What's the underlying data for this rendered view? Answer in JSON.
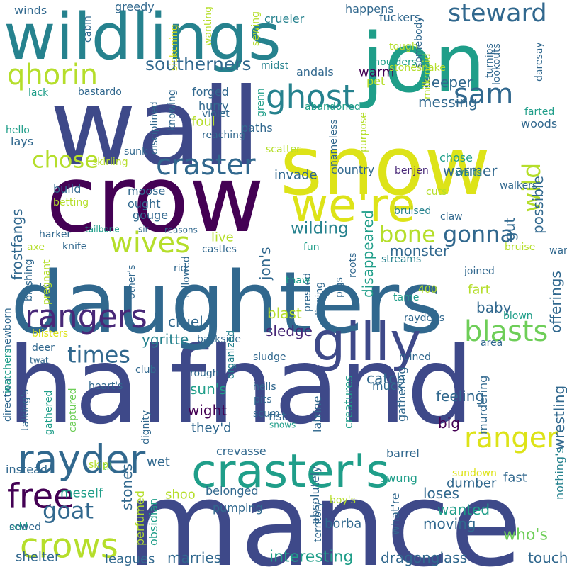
{
  "palette": [
    "#440154",
    "#482878",
    "#3e4989",
    "#31688e",
    "#26828e",
    "#1f9e89",
    "#35b779",
    "#6ece58",
    "#b5de2b",
    "#dde318"
  ],
  "background": "#ffffff",
  "words": [
    "mance",
    "halfhand",
    "daughters",
    "crow",
    "wall",
    "snow",
    "jon",
    "wildlings",
    "we're",
    "craster's",
    "gilly",
    "rayder",
    "crows",
    "free",
    "ranger",
    "ghost",
    "sam",
    "steward",
    "qhorin",
    "craster",
    "rangers",
    "blasts",
    "gonna",
    "bone",
    "wives",
    "chose",
    "goat",
    "times",
    "wild",
    "southerners",
    "wilding",
    "interesting",
    "touch",
    "who's",
    "wanted",
    "dragonglass",
    "marries",
    "loses",
    "moving",
    "frostfangs",
    "wrestling",
    "offerings",
    "possible",
    "disappeared",
    "sledge",
    "blast",
    "cruel",
    "ygritte",
    "wight",
    "sun's",
    "they'd",
    "feeling",
    "catch",
    "big",
    "fart",
    "baby",
    "monster",
    "invade",
    "country",
    "warmer",
    "gut",
    "deeper",
    "messing",
    "pet",
    "warm",
    "andals",
    "happens",
    "fuckers",
    "tough",
    "crueler",
    "winds",
    "greedy",
    "forged",
    "hurry",
    "violet",
    "foul",
    "lays",
    "chose",
    "shelter",
    "leagues",
    "borba",
    "instead",
    "meself",
    "shoo",
    "wet",
    "stones",
    "belonged",
    "what're",
    "fast",
    "dumber",
    "barrel",
    "swung",
    "sundown",
    "nothing's",
    "crevasse",
    "pumping",
    "absolutely",
    "territory",
    "obsidian",
    "perfumed",
    "edd",
    "sewed",
    "til",
    "skip",
    "boy's",
    "direction",
    "talking's",
    "gathered",
    "captured",
    "heart's",
    "dignity",
    "club",
    "rough",
    "hells",
    "pits",
    "scum",
    "fist",
    "snows",
    "latrine",
    "creatures",
    "gathering",
    "murdering",
    "muck",
    "ruined",
    "sludge",
    "deer",
    "twat",
    "blisters",
    "newborn",
    "lake",
    "pregnant",
    "other's",
    "followed",
    "rid",
    "backside",
    "organized",
    "digging",
    "pigs",
    "roots",
    "pressed",
    "thaw",
    "streams",
    "400",
    "tame",
    "rayder's",
    "joined",
    "blown",
    "area",
    "bruise",
    "warmth",
    "walkers",
    "waits",
    "claw",
    "bruised",
    "cuts",
    "benjen",
    "live",
    "castles",
    "fun",
    "harker",
    "knife",
    "axe",
    "tailbone",
    "sir",
    "reasons",
    "moose",
    "ought",
    "build",
    "betting",
    "gouge",
    "blushing",
    "watchers",
    "skirling",
    "sunk",
    "scatter",
    "nameless",
    "purpose",
    "woods",
    "farted",
    "reaching",
    "paths",
    "knowing",
    "disciplined",
    "abandoned",
    "grenn",
    "milkmaid",
    "lookouts",
    "stonesnake",
    "hello",
    "lack",
    "bastardo",
    "midst",
    "cabin",
    "sickening",
    "wanting",
    "sewing",
    "shoulders",
    "somebody",
    "turnips",
    "daresay",
    "jon's"
  ]
}
